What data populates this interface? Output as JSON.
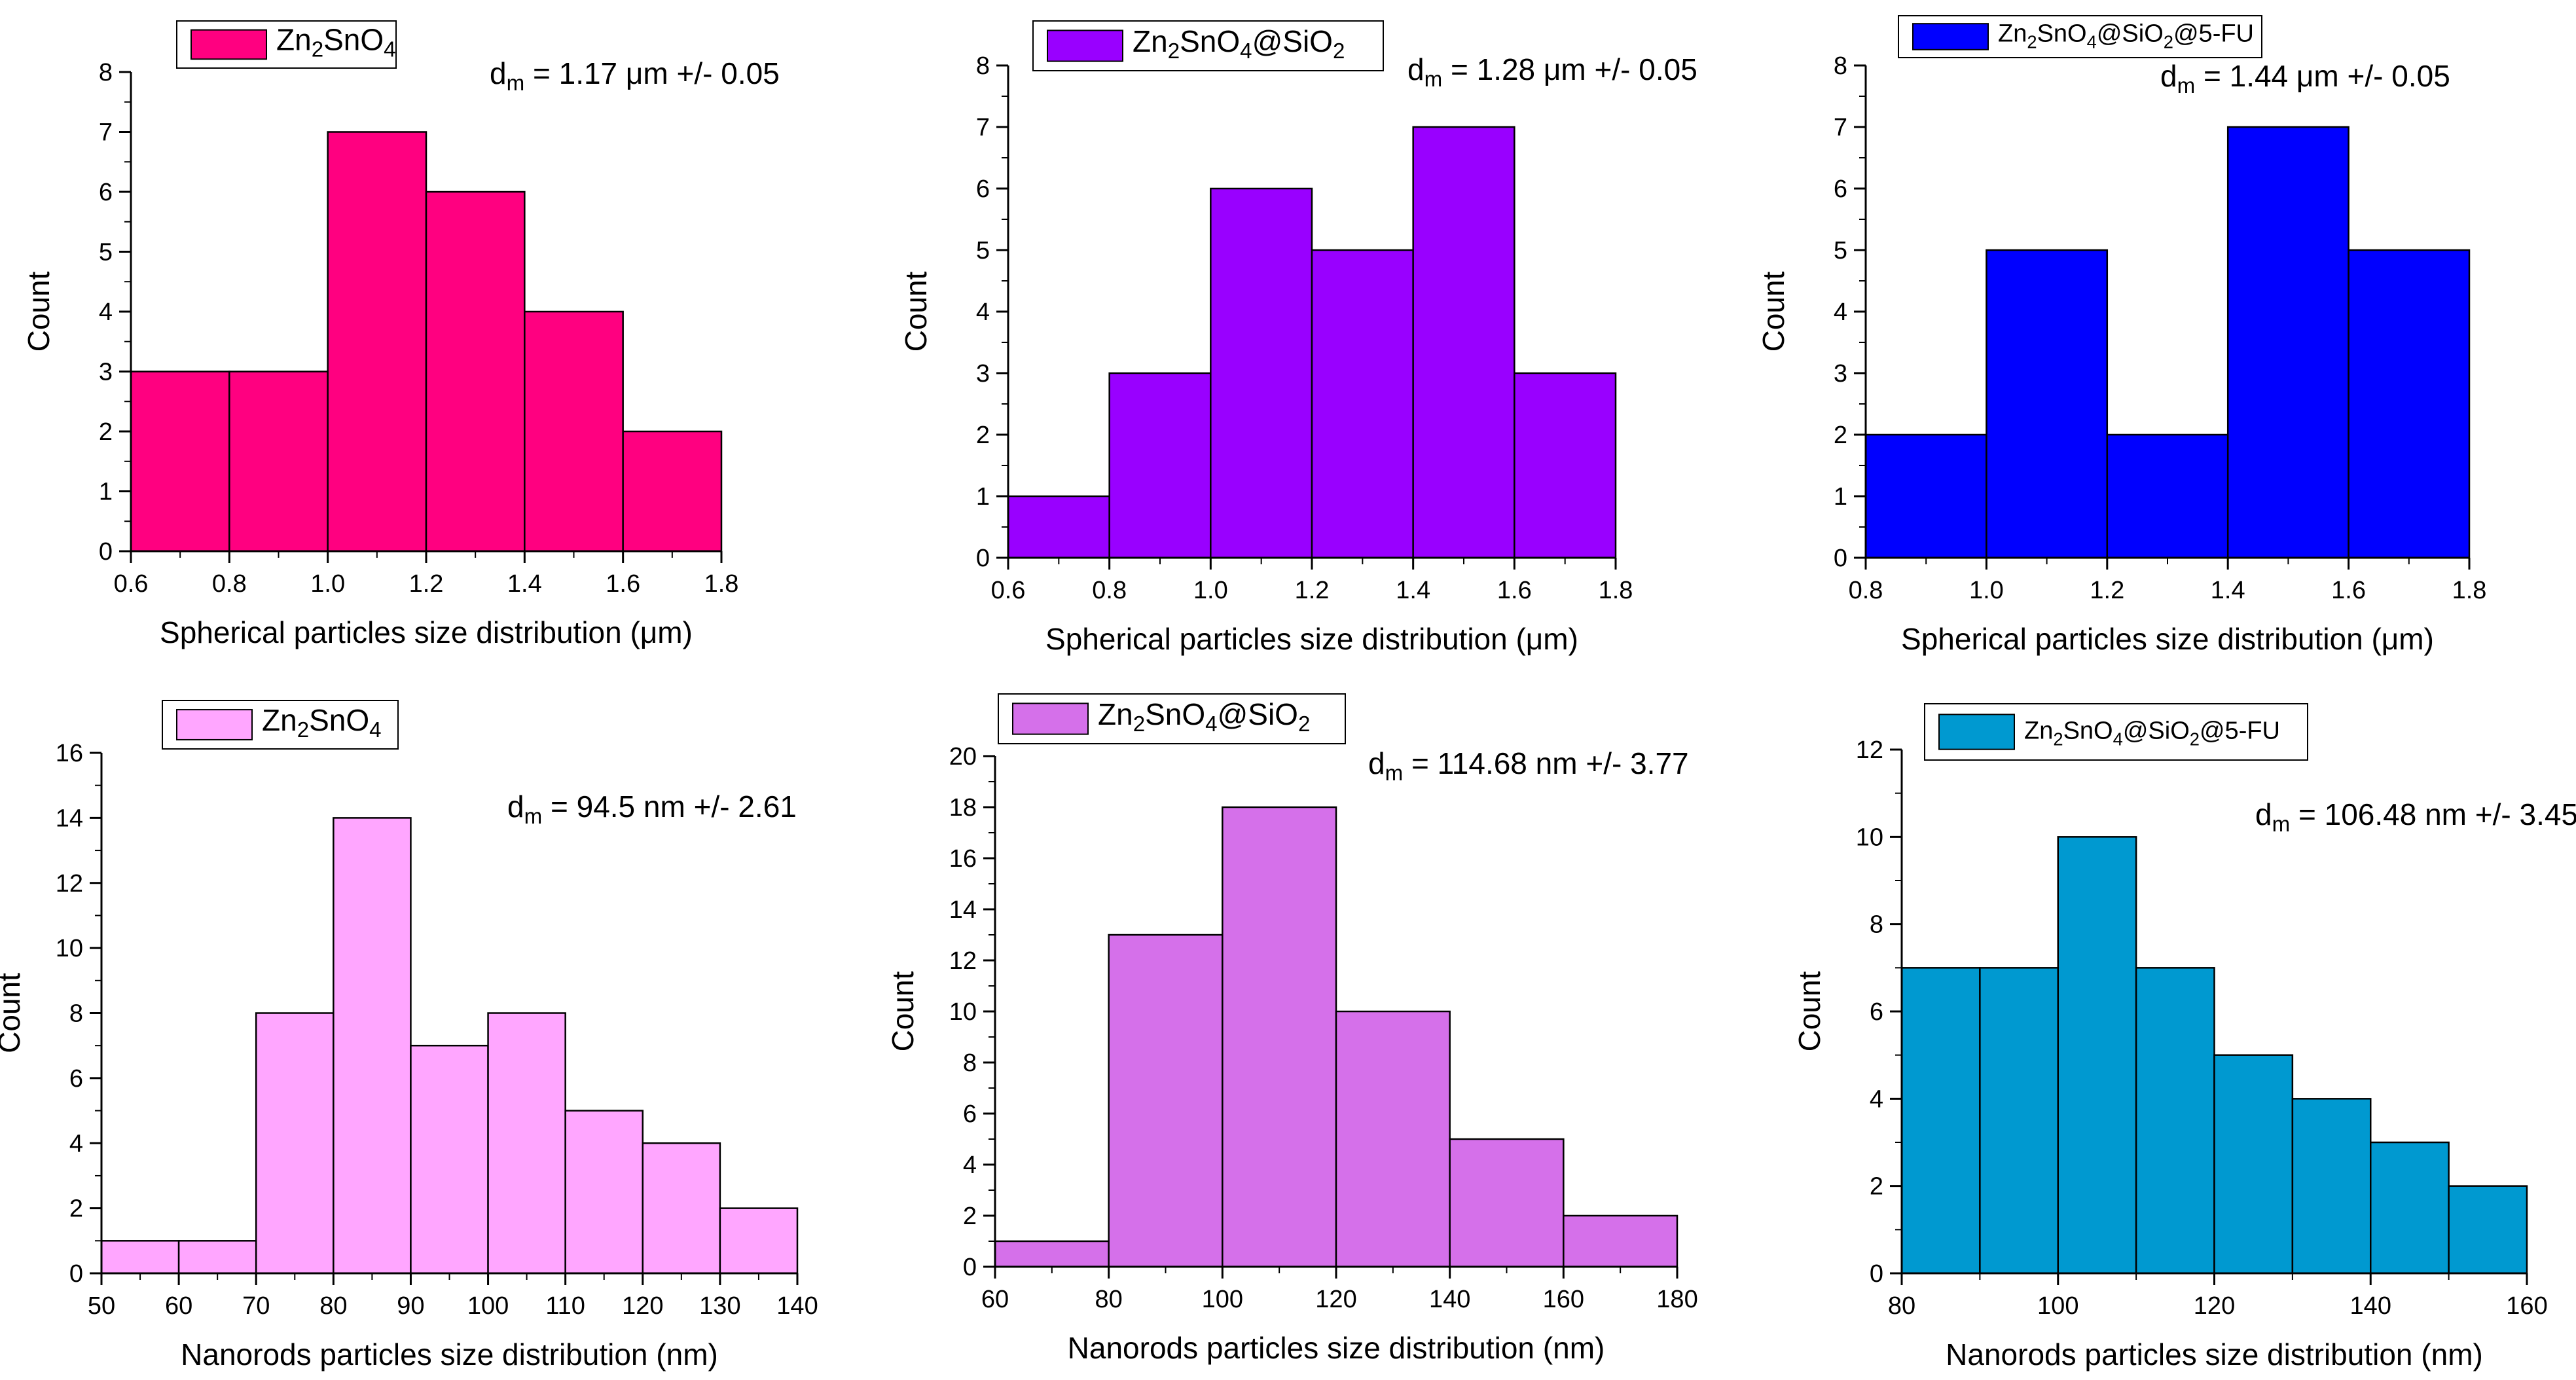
{
  "chart_data": [
    {
      "type": "bar",
      "variant": "histogram",
      "legend": {
        "parts": [
          [
            "Zn",
            ""
          ],
          [
            "2",
            "sub"
          ],
          [
            "SnO",
            ""
          ],
          [
            "4",
            "sub"
          ]
        ],
        "text": "Zn2SnO4",
        "color": "#ff0080"
      },
      "annotation": {
        "parts": [
          [
            "d",
            ""
          ],
          [
            "m",
            "sub"
          ],
          [
            " = 1.17 μm +/- 0.05",
            ""
          ]
        ],
        "text": "dm = 1.17 μm +/- 0.05"
      },
      "bin_edges": [
        0.6,
        0.8,
        1.0,
        1.2,
        1.4,
        1.6,
        1.8
      ],
      "values": [
        3,
        3,
        7,
        6,
        4,
        2
      ],
      "xlim": [
        0.6,
        1.8
      ],
      "ylim": [
        0,
        8
      ],
      "xticks": [
        0.6,
        0.8,
        1.0,
        1.2,
        1.4,
        1.6,
        1.8
      ],
      "xtick_labels": [
        "0.6",
        "0.8",
        "1.0",
        "1.2",
        "1.4",
        "1.6",
        "1.8"
      ],
      "yticks": [
        0,
        1,
        2,
        3,
        4,
        5,
        6,
        7,
        8
      ],
      "ytick_labels": [
        "0",
        "1",
        "2",
        "3",
        "4",
        "5",
        "6",
        "7",
        "8"
      ],
      "xlabel": "Spherical particles size distribution (μm)",
      "ylabel": "Count"
    },
    {
      "type": "bar",
      "variant": "histogram",
      "legend": {
        "parts": [
          [
            "Zn",
            ""
          ],
          [
            "2",
            "sub"
          ],
          [
            "SnO",
            ""
          ],
          [
            "4",
            "sub"
          ],
          [
            "@SiO",
            ""
          ],
          [
            "2",
            "sub"
          ]
        ],
        "text": "Zn2SnO4@SiO2",
        "color": "#9900ff"
      },
      "annotation": {
        "parts": [
          [
            "d",
            ""
          ],
          [
            "m",
            "sub"
          ],
          [
            " = 1.28 μm +/- 0.05",
            ""
          ]
        ],
        "text": "dm = 1.28 μm +/- 0.05"
      },
      "bin_edges": [
        0.6,
        0.8,
        1.0,
        1.2,
        1.4,
        1.6,
        1.8
      ],
      "values": [
        1,
        3,
        6,
        5,
        7,
        3
      ],
      "xlim": [
        0.6,
        1.8
      ],
      "ylim": [
        0,
        8
      ],
      "xticks": [
        0.6,
        0.8,
        1.0,
        1.2,
        1.4,
        1.6,
        1.8
      ],
      "xtick_labels": [
        "0.6",
        "0.8",
        "1.0",
        "1.2",
        "1.4",
        "1.6",
        "1.8"
      ],
      "yticks": [
        0,
        1,
        2,
        3,
        4,
        5,
        6,
        7,
        8
      ],
      "ytick_labels": [
        "0",
        "1",
        "2",
        "3",
        "4",
        "5",
        "6",
        "7",
        "8"
      ],
      "xlabel": "Spherical particles size distribution (μm)",
      "ylabel": "Count"
    },
    {
      "type": "bar",
      "variant": "histogram",
      "legend": {
        "parts": [
          [
            "Zn",
            ""
          ],
          [
            "2",
            "sub"
          ],
          [
            "SnO",
            ""
          ],
          [
            "4",
            "sub"
          ],
          [
            "@SiO",
            ""
          ],
          [
            "2",
            "sub"
          ],
          [
            "@5-FU",
            ""
          ]
        ],
        "text": "Zn2SnO4@SiO2@5-FU",
        "color": "#0000ff"
      },
      "annotation": {
        "parts": [
          [
            "d",
            ""
          ],
          [
            "m",
            "sub"
          ],
          [
            " = 1.44 μm +/- 0.05",
            ""
          ]
        ],
        "text": "dm = 1.44 μm +/- 0.05"
      },
      "bin_edges": [
        0.8,
        1.0,
        1.2,
        1.4,
        1.6,
        1.8
      ],
      "values": [
        2,
        5,
        2,
        7,
        5
      ],
      "xlim": [
        0.8,
        1.8
      ],
      "ylim": [
        0,
        8
      ],
      "xticks": [
        0.8,
        1.0,
        1.2,
        1.4,
        1.6,
        1.8
      ],
      "xtick_labels": [
        "0.8",
        "1.0",
        "1.2",
        "1.4",
        "1.6",
        "1.8"
      ],
      "yticks": [
        0,
        1,
        2,
        3,
        4,
        5,
        6,
        7,
        8
      ],
      "ytick_labels": [
        "0",
        "1",
        "2",
        "3",
        "4",
        "5",
        "6",
        "7",
        "8"
      ],
      "xlabel": "Spherical particles size distribution (μm)",
      "ylabel": "Count"
    },
    {
      "type": "bar",
      "variant": "histogram",
      "legend": {
        "parts": [
          [
            "Zn",
            ""
          ],
          [
            "2",
            "sub"
          ],
          [
            "SnO",
            ""
          ],
          [
            "4",
            "sub"
          ]
        ],
        "text": "Zn2SnO4",
        "color": "#ffa6ff"
      },
      "annotation": {
        "parts": [
          [
            "d",
            ""
          ],
          [
            "m",
            "sub"
          ],
          [
            " = 94.5 nm +/- 2.61",
            ""
          ]
        ],
        "text": "dm = 94.5 nm +/- 2.61"
      },
      "bin_edges": [
        50,
        60,
        70,
        80,
        90,
        100,
        110,
        120,
        130,
        140
      ],
      "values": [
        1,
        1,
        8,
        14,
        7,
        8,
        5,
        4,
        2
      ],
      "xlim": [
        50,
        140
      ],
      "ylim": [
        0,
        16
      ],
      "xticks": [
        50,
        60,
        70,
        80,
        90,
        100,
        110,
        120,
        130,
        140
      ],
      "xtick_labels": [
        "50",
        "60",
        "70",
        "80",
        "90",
        "100",
        "110",
        "120",
        "130",
        "140"
      ],
      "yticks": [
        0,
        2,
        4,
        6,
        8,
        10,
        12,
        14,
        16
      ],
      "ytick_labels": [
        "0",
        "2",
        "4",
        "6",
        "8",
        "10",
        "12",
        "14",
        "16"
      ],
      "xlabel": "Nanorods particles size distribution (nm)",
      "ylabel": "Count"
    },
    {
      "type": "bar",
      "variant": "histogram",
      "legend": {
        "parts": [
          [
            "Zn",
            ""
          ],
          [
            "2",
            "sub"
          ],
          [
            "SnO",
            ""
          ],
          [
            "4",
            "sub"
          ],
          [
            "@SiO",
            ""
          ],
          [
            "2",
            "sub"
          ]
        ],
        "text": "Zn2SnO4@SiO2",
        "color": "#d570ea"
      },
      "annotation": {
        "parts": [
          [
            "d",
            ""
          ],
          [
            "m",
            "sub"
          ],
          [
            " = 114.68 nm +/- 3.77",
            ""
          ]
        ],
        "text": "dm = 114.68 nm +/- 3.77"
      },
      "bin_edges": [
        60,
        80,
        100,
        120,
        140,
        160,
        180
      ],
      "values": [
        1,
        13,
        18,
        10,
        5,
        2
      ],
      "xlim": [
        60,
        180
      ],
      "ylim": [
        0,
        20
      ],
      "xticks": [
        60,
        80,
        100,
        120,
        140,
        160,
        180
      ],
      "xtick_labels": [
        "60",
        "80",
        "100",
        "120",
        "140",
        "160",
        "180"
      ],
      "yticks": [
        0,
        2,
        4,
        6,
        8,
        10,
        12,
        14,
        16,
        18,
        20
      ],
      "ytick_labels": [
        "0",
        "2",
        "4",
        "6",
        "8",
        "10",
        "12",
        "14",
        "16",
        "18",
        "20"
      ],
      "xlabel": "Nanorods particles size distribution (nm)",
      "ylabel": "Count"
    },
    {
      "type": "bar",
      "variant": "histogram",
      "legend": {
        "parts": [
          [
            "Zn",
            ""
          ],
          [
            "2",
            "sub"
          ],
          [
            "SnO",
            ""
          ],
          [
            "4",
            "sub"
          ],
          [
            "@SiO",
            ""
          ],
          [
            "2",
            "sub"
          ],
          [
            "@5-FU",
            ""
          ]
        ],
        "text": "Zn2SnO4@SiO2@5-FU",
        "color": "#0099d0"
      },
      "annotation": {
        "parts": [
          [
            "d",
            ""
          ],
          [
            "m",
            "sub"
          ],
          [
            " = 106.48 nm +/- 3.45",
            ""
          ]
        ],
        "text": "dm = 106.48 nm +/- 3.45"
      },
      "bin_edges": [
        80,
        90,
        100,
        110,
        120,
        130,
        140,
        150,
        160
      ],
      "values": [
        7,
        7,
        10,
        7,
        5,
        4,
        3,
        2
      ],
      "xlim": [
        80,
        160
      ],
      "ylim": [
        0,
        12
      ],
      "xticks": [
        80,
        100,
        120,
        140,
        160
      ],
      "xtick_labels": [
        "80",
        "100",
        "120",
        "140",
        "160"
      ],
      "yticks": [
        0,
        2,
        4,
        6,
        8,
        10,
        12
      ],
      "ytick_labels": [
        "0",
        "2",
        "4",
        "6",
        "8",
        "10",
        "12"
      ],
      "xlabel": "Nanorods particles size distribution (nm)",
      "ylabel": "Count"
    }
  ]
}
